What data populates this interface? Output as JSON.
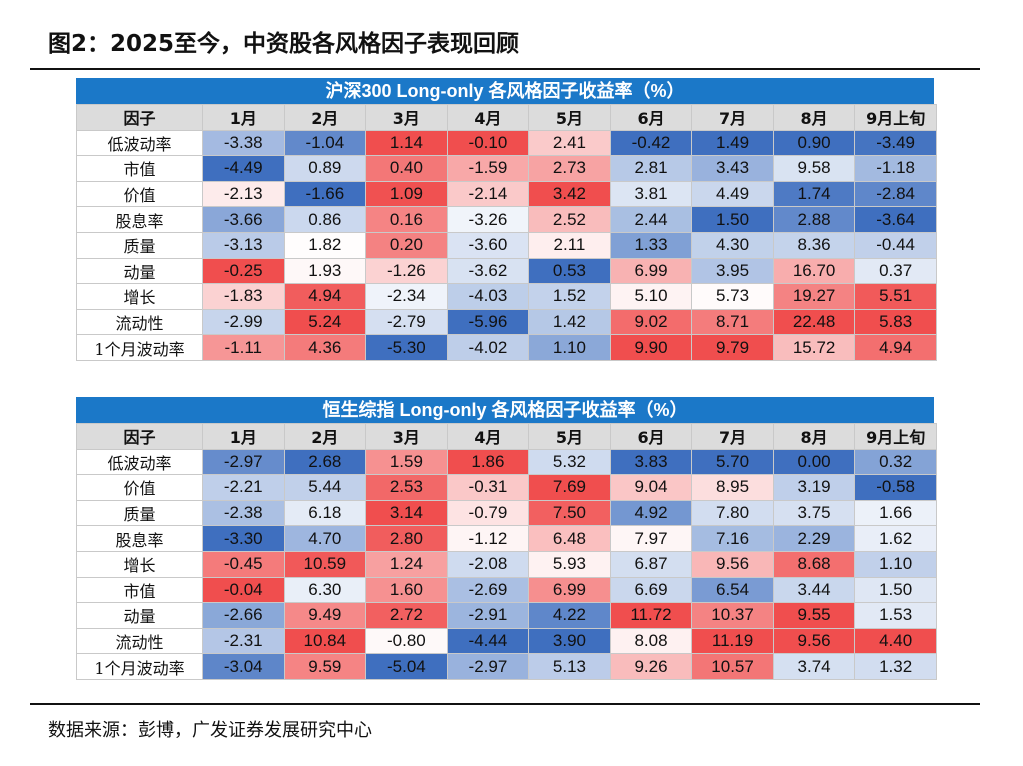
{
  "figure_title": "图2：2025至今，中资股各风格因子表现回顾",
  "source": "数据来源：彭博，广发证券发展研究中心",
  "tables": [
    {
      "title": "沪深300 Long-only 各风格因子收益率（%）",
      "header": [
        "因子",
        "1月",
        "2月",
        "3月",
        "4月",
        "5月",
        "6月",
        "7月",
        "8月",
        "9月上旬"
      ],
      "rows": [
        {
          "factor": "低波动率",
          "values": [
            -3.38,
            -1.04,
            1.14,
            -0.1,
            2.41,
            -0.42,
            1.49,
            0.9,
            -3.49
          ]
        },
        {
          "factor": "市值",
          "values": [
            -4.49,
            0.89,
            0.4,
            -1.59,
            2.73,
            2.81,
            3.43,
            9.58,
            -1.18
          ]
        },
        {
          "factor": "价值",
          "values": [
            -2.13,
            -1.66,
            1.09,
            -2.14,
            3.42,
            3.81,
            4.49,
            1.74,
            -2.84
          ]
        },
        {
          "factor": "股息率",
          "values": [
            -3.66,
            0.86,
            0.16,
            -3.26,
            2.52,
            2.44,
            1.5,
            2.88,
            -3.64
          ]
        },
        {
          "factor": "质量",
          "values": [
            -3.13,
            1.82,
            0.2,
            -3.6,
            2.11,
            1.33,
            4.3,
            8.36,
            -0.44
          ]
        },
        {
          "factor": "动量",
          "values": [
            -0.25,
            1.93,
            -1.26,
            -3.62,
            0.53,
            6.99,
            3.95,
            16.7,
            0.37
          ]
        },
        {
          "factor": "增长",
          "values": [
            -1.83,
            4.94,
            -2.34,
            -4.03,
            1.52,
            5.1,
            5.73,
            19.27,
            5.51
          ]
        },
        {
          "factor": "流动性",
          "values": [
            -2.99,
            5.24,
            -2.79,
            -5.96,
            1.42,
            9.02,
            8.71,
            22.48,
            5.83
          ]
        },
        {
          "factor": "1个月波动率",
          "values": [
            -1.11,
            4.36,
            -5.3,
            -4.02,
            1.1,
            9.9,
            9.79,
            15.72,
            4.94
          ]
        }
      ]
    },
    {
      "title": "恒生综指 Long-only 各风格因子收益率（%）",
      "header": [
        "因子",
        "1月",
        "2月",
        "3月",
        "4月",
        "5月",
        "6月",
        "7月",
        "8月",
        "9月上旬"
      ],
      "rows": [
        {
          "factor": "低波动率",
          "values": [
            -2.97,
            2.68,
            1.59,
            1.86,
            5.32,
            3.83,
            5.7,
            0.0,
            0.32
          ]
        },
        {
          "factor": "价值",
          "values": [
            -2.21,
            5.44,
            2.53,
            -0.31,
            7.69,
            9.04,
            8.95,
            3.19,
            -0.58
          ]
        },
        {
          "factor": "质量",
          "values": [
            -2.38,
            6.18,
            3.14,
            -0.79,
            7.5,
            4.92,
            7.8,
            3.75,
            1.66
          ]
        },
        {
          "factor": "股息率",
          "values": [
            -3.3,
            4.7,
            2.8,
            -1.12,
            6.48,
            7.97,
            7.16,
            2.29,
            1.62
          ]
        },
        {
          "factor": "增长",
          "values": [
            -0.45,
            10.59,
            1.24,
            -2.08,
            5.93,
            6.87,
            9.56,
            8.68,
            1.1
          ]
        },
        {
          "factor": "市值",
          "values": [
            -0.04,
            6.3,
            1.6,
            -2.69,
            6.99,
            6.69,
            6.54,
            3.44,
            1.5
          ]
        },
        {
          "factor": "动量",
          "values": [
            -2.66,
            9.49,
            2.72,
            -2.91,
            4.22,
            11.72,
            10.37,
            9.55,
            1.53
          ]
        },
        {
          "factor": "流动性",
          "values": [
            -2.31,
            10.84,
            -0.8,
            -4.44,
            3.9,
            8.08,
            11.19,
            9.56,
            4.4
          ]
        },
        {
          "factor": "1个月波动率",
          "values": [
            -3.04,
            9.59,
            -5.04,
            -2.97,
            5.13,
            9.26,
            10.57,
            3.74,
            1.32
          ]
        }
      ]
    }
  ],
  "colors": {
    "banner": "#1b78c8",
    "header_fill": "#dcdcdc",
    "high": "#f04e4e",
    "mid": "#ffffff",
    "low": "#3f6fbf"
  }
}
